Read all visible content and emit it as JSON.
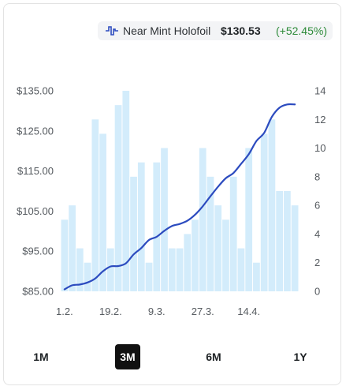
{
  "legend": {
    "icon": "price-chart-icon",
    "name": "Near Mint Holofoil",
    "price": "$130.53",
    "change": "(+52.45%)",
    "line_color": "#2c4bbf",
    "bar_color": "#d3ecfb"
  },
  "range_buttons": [
    {
      "label": "1M",
      "active": false
    },
    {
      "label": "3M",
      "active": true
    },
    {
      "label": "6M",
      "active": false
    },
    {
      "label": "1Y",
      "active": false
    }
  ],
  "chart_data": {
    "type": "bar+line",
    "x_tick_labels": [
      "1.2.",
      "19.2.",
      "9.3.",
      "27.3.",
      "14.4."
    ],
    "y_left": {
      "ticks": [
        "$135.00",
        "$125.00",
        "$115.00",
        "$105.00",
        "$95.00",
        "$85.00"
      ],
      "range": [
        85,
        135
      ]
    },
    "y_right": {
      "ticks": [
        "14",
        "12",
        "10",
        "8",
        "6",
        "4",
        "2",
        "0"
      ],
      "range": [
        0,
        14
      ]
    },
    "bars_right_axis": [
      5,
      6,
      3,
      2,
      12,
      11,
      3,
      13,
      14,
      8,
      9,
      2,
      9,
      10,
      3,
      3,
      4,
      5,
      10,
      8,
      6,
      5,
      8,
      3,
      10,
      2,
      11,
      12,
      7,
      7,
      6
    ],
    "price_line_left_axis": [
      85.5,
      86.5,
      86.7,
      87.2,
      88.2,
      90.0,
      91.2,
      91.3,
      92.0,
      94.2,
      95.8,
      97.8,
      98.6,
      100.1,
      101.3,
      101.8,
      102.6,
      104.1,
      106.2,
      108.7,
      111.1,
      113.2,
      114.5,
      116.8,
      119.2,
      122.5,
      124.5,
      128.5,
      130.8,
      131.6,
      131.6
    ],
    "grid": false,
    "legend_position": "top-right"
  }
}
